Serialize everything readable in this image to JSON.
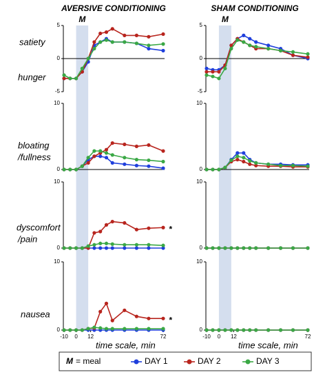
{
  "titles": [
    "AVERSIVE CONDITIONING",
    "SHAM CONDITIONING"
  ],
  "row_labels": [
    "satiety",
    "hunger",
    "bloating",
    "/fullness",
    "dyscomfort",
    "/pain",
    "nausea"
  ],
  "legend_meal": {
    "symbol": "M",
    "text": "= meal"
  },
  "chart_data": [
    {
      "type": "line",
      "annotation": "M",
      "shade": [
        0,
        10
      ],
      "xlim": [
        -10,
        72
      ],
      "ylim": [
        -5,
        5
      ],
      "yticks": [
        5,
        0,
        -5
      ],
      "x": [
        -10,
        -5,
        0,
        5,
        10,
        15,
        20,
        25,
        30,
        40,
        50,
        60,
        72
      ],
      "series": [
        {
          "name": "DAY 1",
          "color": "#1f3fdc",
          "values": [
            -3,
            -3,
            -3,
            -2,
            -0.5,
            2,
            2.5,
            3,
            2.5,
            2.5,
            2.3,
            1.5,
            1.2
          ]
        },
        {
          "name": "DAY 2",
          "color": "#b8251e",
          "values": [
            -3,
            -3,
            -3,
            -2,
            0,
            2.5,
            3.8,
            4,
            4.5,
            3.5,
            3.5,
            3.3,
            3.7
          ]
        },
        {
          "name": "DAY 3",
          "color": "#3aa845",
          "values": [
            -2.5,
            -3,
            -3,
            -1.5,
            0,
            1.5,
            2.5,
            2.8,
            2.5,
            2.5,
            2.3,
            2,
            2.2
          ]
        }
      ]
    },
    {
      "type": "line",
      "annotation": "M",
      "shade": [
        0,
        10
      ],
      "xlim": [
        -10,
        72
      ],
      "ylim": [
        -5,
        5
      ],
      "yticks": [
        5,
        0,
        -5
      ],
      "x": [
        -10,
        -5,
        0,
        5,
        10,
        15,
        20,
        25,
        30,
        40,
        50,
        60,
        72
      ],
      "series": [
        {
          "name": "DAY 1",
          "color": "#1f3fdc",
          "values": [
            -1.5,
            -1.7,
            -1.7,
            -1,
            2,
            3,
            3.5,
            3,
            2.5,
            2,
            1.5,
            0.5,
            0
          ]
        },
        {
          "name": "DAY 2",
          "color": "#b8251e",
          "values": [
            -2,
            -2,
            -2,
            -1,
            2,
            3,
            2.5,
            2,
            1.5,
            1.5,
            1.2,
            0.5,
            0.2
          ]
        },
        {
          "name": "DAY 3",
          "color": "#3aa845",
          "values": [
            -2.5,
            -2.7,
            -3,
            -1.5,
            1.5,
            2.8,
            2.5,
            2,
            1.8,
            1.5,
            1.2,
            1,
            0.7
          ]
        }
      ]
    },
    {
      "type": "line",
      "shade": [
        0,
        10
      ],
      "xlim": [
        -10,
        72
      ],
      "ylim": [
        0,
        10
      ],
      "yticks": [
        10,
        0
      ],
      "x": [
        -10,
        -5,
        0,
        5,
        10,
        15,
        20,
        25,
        30,
        40,
        50,
        60,
        72
      ],
      "series": [
        {
          "name": "DAY 1",
          "color": "#1f3fdc",
          "values": [
            0,
            0,
            0,
            0.5,
            1.5,
            2,
            2,
            1.8,
            1,
            0.8,
            0.6,
            0.5,
            0.2
          ]
        },
        {
          "name": "DAY 2",
          "color": "#b8251e",
          "values": [
            0,
            0,
            0,
            0.5,
            1,
            2,
            2.5,
            3,
            4,
            3.8,
            3.5,
            3.7,
            2.8
          ]
        },
        {
          "name": "DAY 3",
          "color": "#3aa845",
          "values": [
            0,
            0,
            0,
            0.5,
            1.8,
            2.8,
            2.8,
            2.5,
            2.2,
            1.8,
            1.5,
            1.4,
            1.2
          ]
        }
      ]
    },
    {
      "type": "line",
      "shade": [
        0,
        10
      ],
      "xlim": [
        -10,
        72
      ],
      "ylim": [
        0,
        10
      ],
      "yticks": [
        10,
        0
      ],
      "x": [
        -10,
        -5,
        0,
        5,
        10,
        15,
        20,
        25,
        30,
        40,
        50,
        60,
        72
      ],
      "series": [
        {
          "name": "DAY 1",
          "color": "#1f3fdc",
          "values": [
            0,
            0,
            0,
            0.3,
            1.5,
            2.5,
            2.5,
            1.5,
            1,
            0.8,
            0.8,
            0.7,
            0.7
          ]
        },
        {
          "name": "DAY 2",
          "color": "#b8251e",
          "values": [
            0,
            0,
            0,
            0.3,
            1.2,
            1.5,
            1.2,
            0.8,
            0.6,
            0.5,
            0.5,
            0.4,
            0.4
          ]
        },
        {
          "name": "DAY 3",
          "color": "#3aa845",
          "values": [
            0,
            0,
            0,
            0.3,
            1.4,
            2,
            1.8,
            1.3,
            1,
            0.8,
            0.6,
            0.6,
            0.5
          ]
        }
      ]
    },
    {
      "type": "line",
      "annotation": "*",
      "shade": [
        0,
        10
      ],
      "xlim": [
        -10,
        72
      ],
      "ylim": [
        0,
        10
      ],
      "yticks": [
        10,
        0
      ],
      "x": [
        -10,
        -5,
        0,
        5,
        10,
        15,
        20,
        25,
        30,
        40,
        50,
        60,
        72
      ],
      "series": [
        {
          "name": "DAY 1",
          "color": "#1f3fdc",
          "values": [
            0,
            0,
            0,
            0,
            0,
            0,
            0,
            0,
            0,
            0,
            0,
            0,
            0
          ]
        },
        {
          "name": "DAY 2",
          "color": "#b8251e",
          "values": [
            0,
            0,
            0,
            0,
            0,
            2.3,
            2.5,
            3.5,
            4,
            3.8,
            2.8,
            3,
            3.1
          ]
        },
        {
          "name": "DAY 3",
          "color": "#3aa845",
          "values": [
            0,
            0,
            0,
            0,
            0.3,
            0.5,
            0.7,
            0.7,
            0.6,
            0.5,
            0.5,
            0.5,
            0.4
          ]
        }
      ]
    },
    {
      "type": "line",
      "shade": [
        0,
        10
      ],
      "xlim": [
        -10,
        72
      ],
      "ylim": [
        0,
        10
      ],
      "yticks": [
        10,
        0
      ],
      "x": [
        -10,
        -5,
        0,
        5,
        10,
        15,
        20,
        25,
        30,
        40,
        50,
        60,
        72
      ],
      "series": [
        {
          "name": "DAY 1",
          "color": "#1f3fdc",
          "values": [
            0,
            0,
            0,
            0,
            0,
            0,
            0,
            0,
            0,
            0,
            0,
            0,
            0
          ]
        },
        {
          "name": "DAY 2",
          "color": "#b8251e",
          "values": [
            0,
            0,
            0,
            0,
            0,
            0,
            0,
            0,
            0,
            0,
            0,
            0,
            0
          ]
        },
        {
          "name": "DAY 3",
          "color": "#3aa845",
          "values": [
            0,
            0,
            0,
            0,
            0,
            0,
            0,
            0,
            0,
            0,
            0,
            0,
            0
          ]
        }
      ]
    },
    {
      "type": "line",
      "annotation": "*",
      "shade": [
        0,
        10
      ],
      "xlim": [
        -10,
        72
      ],
      "ylim": [
        0,
        10
      ],
      "yticks": [
        10,
        0
      ],
      "xticks": [
        -10,
        0,
        12,
        72
      ],
      "xlabel": "time scale, min",
      "x": [
        -10,
        -5,
        0,
        5,
        10,
        15,
        20,
        25,
        30,
        40,
        50,
        60,
        72
      ],
      "series": [
        {
          "name": "DAY 1",
          "color": "#1f3fdc",
          "values": [
            0,
            0,
            0,
            0,
            0,
            0,
            0,
            0,
            0,
            0,
            0,
            0,
            0
          ]
        },
        {
          "name": "DAY 2",
          "color": "#b8251e",
          "values": [
            0,
            0,
            0,
            0,
            0.2,
            0.3,
            2.7,
            3.9,
            1.4,
            2.9,
            2,
            1.7,
            1.7
          ]
        },
        {
          "name": "DAY 3",
          "color": "#3aa845",
          "values": [
            0,
            0,
            0,
            0,
            0.2,
            0.4,
            0.3,
            0.2,
            0.2,
            0.2,
            0.2,
            0.2,
            0.2
          ]
        }
      ]
    },
    {
      "type": "line",
      "shade": [
        0,
        10
      ],
      "xlim": [
        -10,
        72
      ],
      "ylim": [
        0,
        10
      ],
      "yticks": [
        10,
        0
      ],
      "xticks": [
        -10,
        0,
        12,
        72
      ],
      "xlabel": "time scale, min",
      "x": [
        -10,
        -5,
        0,
        5,
        10,
        15,
        20,
        25,
        30,
        40,
        50,
        60,
        72
      ],
      "series": [
        {
          "name": "DAY 1",
          "color": "#1f3fdc",
          "values": [
            0,
            0,
            0,
            0,
            0,
            0,
            0,
            0,
            0,
            0,
            0,
            0,
            0
          ]
        },
        {
          "name": "DAY 2",
          "color": "#b8251e",
          "values": [
            0,
            0,
            0,
            0,
            0,
            0,
            0,
            0,
            0,
            0,
            0,
            0,
            0
          ]
        },
        {
          "name": "DAY 3",
          "color": "#3aa845",
          "values": [
            0,
            0,
            0,
            0,
            0,
            0,
            0,
            0,
            0,
            0,
            0,
            0,
            0
          ]
        }
      ]
    }
  ]
}
